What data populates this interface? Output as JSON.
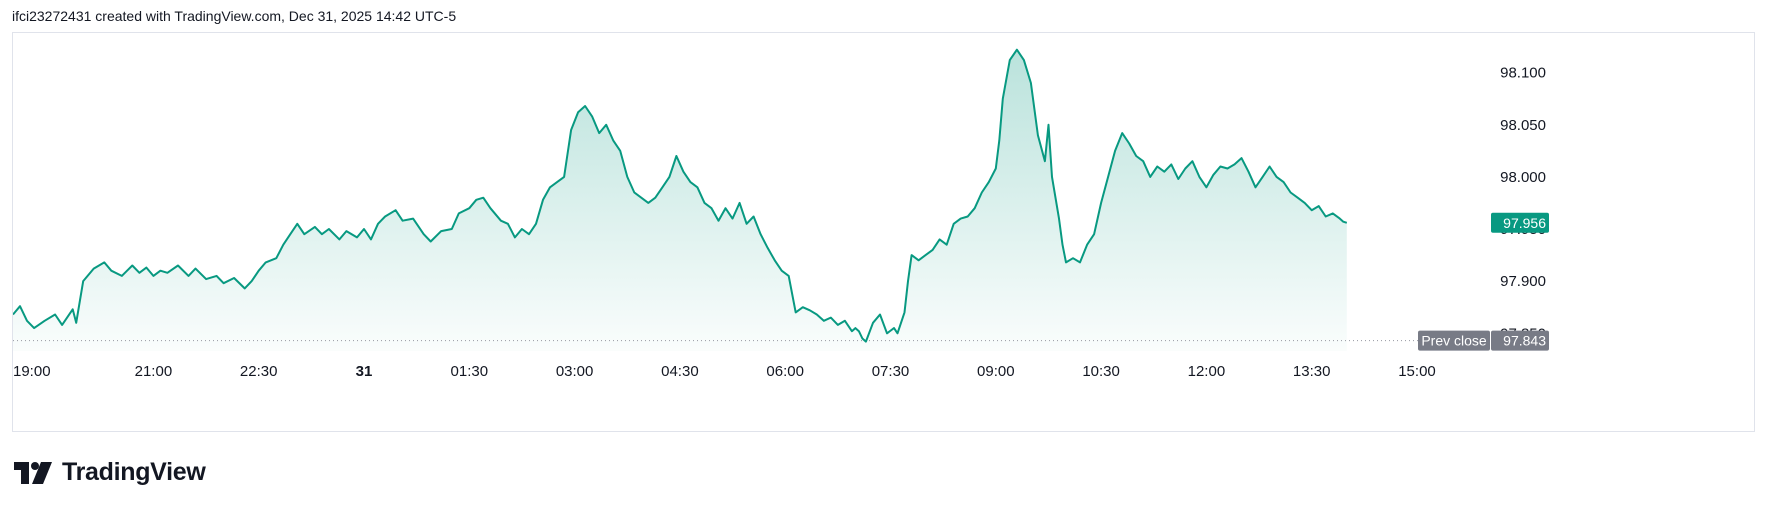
{
  "header": {
    "caption": "ifci23272431 created with TradingView.com, Dec 31, 2025 14:42 UTC-5"
  },
  "brand": {
    "name": "TradingView",
    "logo_icon": "tradingview-logo-icon"
  },
  "colors": {
    "line": "#089981",
    "area_top": "#089981",
    "last_price_badge": "#089981",
    "prev_close_badge": "#787b86",
    "prev_close_line": "#9598a1",
    "frame_border": "#e0e3eb"
  },
  "chart_data": {
    "type": "area",
    "x_tick_labels": [
      {
        "label": "19:00",
        "hour": 0.0
      },
      {
        "label": "21:00",
        "hour": 2.0
      },
      {
        "label": "22:30",
        "hour": 3.5
      },
      {
        "label": "31",
        "hour": 5.0,
        "bold": true
      },
      {
        "label": "01:30",
        "hour": 6.5
      },
      {
        "label": "03:00",
        "hour": 8.0
      },
      {
        "label": "04:30",
        "hour": 9.5
      },
      {
        "label": "06:00",
        "hour": 11.0
      },
      {
        "label": "07:30",
        "hour": 12.5
      },
      {
        "label": "09:00",
        "hour": 14.0
      },
      {
        "label": "10:30",
        "hour": 15.5
      },
      {
        "label": "12:00",
        "hour": 17.0
      },
      {
        "label": "13:30",
        "hour": 18.5
      },
      {
        "label": "15:00",
        "hour": 20.0
      }
    ],
    "y_ticks": [
      97.85,
      97.9,
      97.95,
      98.0,
      98.05,
      98.1
    ],
    "y_tick_labels": [
      "97.850",
      "97.900",
      "97.950",
      "98.000",
      "98.050",
      "98.100"
    ],
    "xlim": [
      0,
      20.0
    ],
    "ylim": [
      97.833,
      98.138
    ],
    "grid": false,
    "series": [
      {
        "points": [
          [
            0.0,
            97.868
          ],
          [
            0.1,
            97.876
          ],
          [
            0.2,
            97.862
          ],
          [
            0.3,
            97.855
          ],
          [
            0.45,
            97.862
          ],
          [
            0.6,
            97.868
          ],
          [
            0.7,
            97.858
          ],
          [
            0.85,
            97.873
          ],
          [
            0.9,
            97.86
          ],
          [
            1.0,
            97.9
          ],
          [
            1.15,
            97.912
          ],
          [
            1.3,
            97.918
          ],
          [
            1.4,
            97.91
          ],
          [
            1.55,
            97.905
          ],
          [
            1.7,
            97.915
          ],
          [
            1.8,
            97.908
          ],
          [
            1.9,
            97.913
          ],
          [
            2.0,
            97.905
          ],
          [
            2.1,
            97.91
          ],
          [
            2.2,
            97.908
          ],
          [
            2.35,
            97.915
          ],
          [
            2.5,
            97.905
          ],
          [
            2.6,
            97.912
          ],
          [
            2.75,
            97.902
          ],
          [
            2.9,
            97.905
          ],
          [
            3.0,
            97.898
          ],
          [
            3.15,
            97.903
          ],
          [
            3.3,
            97.893
          ],
          [
            3.4,
            97.9
          ],
          [
            3.5,
            97.91
          ],
          [
            3.6,
            97.918
          ],
          [
            3.75,
            97.922
          ],
          [
            3.85,
            97.935
          ],
          [
            3.95,
            97.945
          ],
          [
            4.05,
            97.955
          ],
          [
            4.15,
            97.945
          ],
          [
            4.3,
            97.952
          ],
          [
            4.4,
            97.945
          ],
          [
            4.5,
            97.95
          ],
          [
            4.65,
            97.94
          ],
          [
            4.75,
            97.948
          ],
          [
            4.9,
            97.942
          ],
          [
            5.0,
            97.95
          ],
          [
            5.1,
            97.94
          ],
          [
            5.2,
            97.955
          ],
          [
            5.3,
            97.962
          ],
          [
            5.45,
            97.968
          ],
          [
            5.55,
            97.958
          ],
          [
            5.7,
            97.96
          ],
          [
            5.85,
            97.945
          ],
          [
            5.95,
            97.938
          ],
          [
            6.1,
            97.948
          ],
          [
            6.25,
            97.95
          ],
          [
            6.35,
            97.965
          ],
          [
            6.5,
            97.97
          ],
          [
            6.6,
            97.978
          ],
          [
            6.7,
            97.98
          ],
          [
            6.8,
            97.97
          ],
          [
            6.95,
            97.958
          ],
          [
            7.05,
            97.955
          ],
          [
            7.15,
            97.942
          ],
          [
            7.25,
            97.95
          ],
          [
            7.35,
            97.945
          ],
          [
            7.45,
            97.955
          ],
          [
            7.55,
            97.978
          ],
          [
            7.65,
            97.99
          ],
          [
            7.75,
            97.995
          ],
          [
            7.85,
            98.0
          ],
          [
            7.95,
            98.045
          ],
          [
            8.05,
            98.062
          ],
          [
            8.15,
            98.068
          ],
          [
            8.25,
            98.058
          ],
          [
            8.35,
            98.042
          ],
          [
            8.45,
            98.05
          ],
          [
            8.55,
            98.035
          ],
          [
            8.65,
            98.025
          ],
          [
            8.75,
            98.0
          ],
          [
            8.85,
            97.985
          ],
          [
            8.95,
            97.98
          ],
          [
            9.05,
            97.975
          ],
          [
            9.15,
            97.98
          ],
          [
            9.25,
            97.99
          ],
          [
            9.35,
            98.0
          ],
          [
            9.45,
            98.02
          ],
          [
            9.55,
            98.005
          ],
          [
            9.65,
            97.995
          ],
          [
            9.75,
            97.99
          ],
          [
            9.85,
            97.975
          ],
          [
            9.95,
            97.97
          ],
          [
            10.05,
            97.958
          ],
          [
            10.15,
            97.97
          ],
          [
            10.25,
            97.96
          ],
          [
            10.35,
            97.975
          ],
          [
            10.45,
            97.955
          ],
          [
            10.55,
            97.962
          ],
          [
            10.65,
            97.945
          ],
          [
            10.75,
            97.932
          ],
          [
            10.85,
            97.92
          ],
          [
            10.95,
            97.91
          ],
          [
            11.05,
            97.905
          ],
          [
            11.15,
            97.87
          ],
          [
            11.25,
            97.875
          ],
          [
            11.35,
            97.872
          ],
          [
            11.45,
            97.868
          ],
          [
            11.55,
            97.862
          ],
          [
            11.65,
            97.865
          ],
          [
            11.75,
            97.858
          ],
          [
            11.85,
            97.862
          ],
          [
            11.95,
            97.852
          ],
          [
            12.0,
            97.855
          ],
          [
            12.05,
            97.852
          ],
          [
            12.1,
            97.845
          ],
          [
            12.15,
            97.842
          ],
          [
            12.25,
            97.86
          ],
          [
            12.35,
            97.868
          ],
          [
            12.45,
            97.85
          ],
          [
            12.55,
            97.855
          ],
          [
            12.6,
            97.85
          ],
          [
            12.7,
            97.87
          ],
          [
            12.75,
            97.9
          ],
          [
            12.8,
            97.925
          ],
          [
            12.9,
            97.92
          ],
          [
            13.0,
            97.925
          ],
          [
            13.1,
            97.93
          ],
          [
            13.2,
            97.94
          ],
          [
            13.3,
            97.935
          ],
          [
            13.4,
            97.955
          ],
          [
            13.5,
            97.96
          ],
          [
            13.6,
            97.962
          ],
          [
            13.7,
            97.97
          ],
          [
            13.8,
            97.985
          ],
          [
            13.9,
            97.995
          ],
          [
            14.0,
            98.008
          ],
          [
            14.05,
            98.035
          ],
          [
            14.1,
            98.075
          ],
          [
            14.2,
            98.112
          ],
          [
            14.3,
            98.122
          ],
          [
            14.4,
            98.112
          ],
          [
            14.5,
            98.09
          ],
          [
            14.6,
            98.04
          ],
          [
            14.7,
            98.015
          ],
          [
            14.75,
            98.05
          ],
          [
            14.8,
            98.0
          ],
          [
            14.9,
            97.96
          ],
          [
            14.95,
            97.935
          ],
          [
            15.0,
            97.918
          ],
          [
            15.1,
            97.922
          ],
          [
            15.2,
            97.918
          ],
          [
            15.3,
            97.935
          ],
          [
            15.4,
            97.945
          ],
          [
            15.5,
            97.975
          ],
          [
            15.6,
            98.0
          ],
          [
            15.7,
            98.025
          ],
          [
            15.8,
            98.042
          ],
          [
            15.9,
            98.032
          ],
          [
            16.0,
            98.02
          ],
          [
            16.1,
            98.015
          ],
          [
            16.2,
            98.0
          ],
          [
            16.3,
            98.01
          ],
          [
            16.4,
            98.005
          ],
          [
            16.5,
            98.012
          ],
          [
            16.6,
            97.998
          ],
          [
            16.7,
            98.008
          ],
          [
            16.8,
            98.015
          ],
          [
            16.9,
            98.0
          ],
          [
            17.0,
            97.99
          ],
          [
            17.1,
            98.002
          ],
          [
            17.2,
            98.01
          ],
          [
            17.3,
            98.008
          ],
          [
            17.4,
            98.012
          ],
          [
            17.5,
            98.018
          ],
          [
            17.6,
            98.005
          ],
          [
            17.7,
            97.99
          ],
          [
            17.8,
            98.0
          ],
          [
            17.9,
            98.01
          ],
          [
            18.0,
            98.0
          ],
          [
            18.1,
            97.995
          ],
          [
            18.2,
            97.985
          ],
          [
            18.3,
            97.98
          ],
          [
            18.4,
            97.975
          ],
          [
            18.5,
            97.968
          ],
          [
            18.6,
            97.972
          ],
          [
            18.7,
            97.962
          ],
          [
            18.8,
            97.965
          ],
          [
            18.9,
            97.96
          ],
          [
            18.95,
            97.957
          ],
          [
            19.0,
            97.956
          ]
        ]
      }
    ],
    "last_price": {
      "value": 97.956,
      "label": "97.956"
    },
    "prev_close": {
      "value": 97.843,
      "title": "Prev close",
      "label": "97.843"
    }
  }
}
